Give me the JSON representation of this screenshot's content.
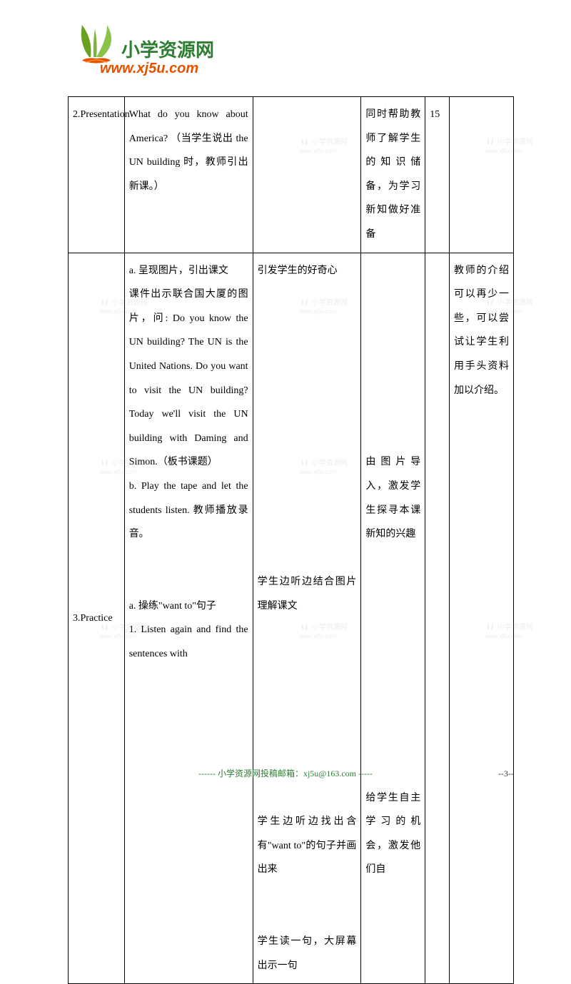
{
  "logo": {
    "cn_text": "小学资源网",
    "url_text": "www.xj5u.com",
    "leaf_color_left": "#6aa121",
    "leaf_color_right": "#8bc34a",
    "base_color": "#e65100"
  },
  "watermark": {
    "text": "小学资源网",
    "subtext": "www.xj5u.com"
  },
  "table": {
    "rows": [
      {
        "col1": "2.Presentation",
        "col2": "What do you know about America? （当学生说出 the     UN building 时，教师引出新课。）",
        "col3": "",
        "col4": "同时帮助教师了解学生的知识储备，为学习新知做好准备",
        "col5": "15",
        "col6": ""
      },
      {
        "col1": "3.Practice",
        "col2": "a. 呈现图片，引出课文\n课件出示联合国大厦的图片，问: Do you know the UN building? The UN is the United Nations. Do you want to visit the UN building? Today we'll visit the UN building with Daming and Simon.（板书课题）\nb. Play the tape and let the students listen. 教师播放录音。\n\na. 操练\"want to\"句子\n1. Listen again and find the sentences with",
        "col3": "引发学生的好奇心\n\n\n\n\n\n\n学生边听边结合图片理解课文\n\n\n\n\n学生边听边找出含有\"want to\"的句子并画出来\n\n学生读一句，大屏幕出示一句",
        "col4": "\n\n\n\n由图片导入，激发学生探寻本课新知的兴趣\n\n\n\n\n\n给学生自主学习的机会，激发他们自",
        "col5": "",
        "col6": "教师的介绍可以再少一些，可以尝试让学生利用手头资料加以介绍。"
      }
    ]
  },
  "footer": {
    "text": "------ 小学资源网投稿邮箱：xj5u@163.com -----",
    "page_number": "--3--"
  },
  "colors": {
    "border": "#000000",
    "text": "#000000",
    "footer_text": "#2e7d32",
    "watermark": "#999999"
  }
}
